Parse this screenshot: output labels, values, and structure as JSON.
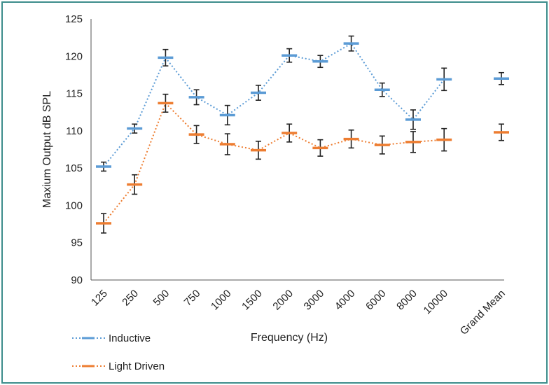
{
  "chart_data": {
    "type": "line",
    "title": "",
    "xlabel": "Frequency (Hz)",
    "ylabel": "Maxium Output dB SPL",
    "ylim": [
      90,
      125
    ],
    "yticks": [
      90,
      95,
      100,
      105,
      110,
      115,
      120,
      125
    ],
    "categories": [
      "125",
      "250",
      "500",
      "750",
      "1000",
      "1500",
      "2000",
      "3000",
      "4000",
      "6000",
      "8000",
      "10000",
      "Grand Mean"
    ],
    "grid": false,
    "legend_position": "bottom-left",
    "series": [
      {
        "name": "Inductive",
        "color": "#5b9bd5",
        "values": [
          105.2,
          110.3,
          119.8,
          114.5,
          112.1,
          115.1,
          120.1,
          119.3,
          121.7,
          115.5,
          111.5,
          116.9,
          117.0
        ],
        "error": [
          0.6,
          0.6,
          1.1,
          1.0,
          1.3,
          1.0,
          0.9,
          0.8,
          1.0,
          0.9,
          1.3,
          1.5,
          0.8
        ],
        "dotted_connects_through": 12
      },
      {
        "name": "Light Driven",
        "color": "#ed7d31",
        "values": [
          97.6,
          102.8,
          113.7,
          109.5,
          108.2,
          107.4,
          109.7,
          107.7,
          108.9,
          108.1,
          108.5,
          108.8,
          109.8
        ],
        "error": [
          1.3,
          1.3,
          1.2,
          1.2,
          1.4,
          1.2,
          1.2,
          1.1,
          1.2,
          1.2,
          1.4,
          1.5,
          1.1
        ],
        "dotted_connects_through": 12
      }
    ]
  }
}
